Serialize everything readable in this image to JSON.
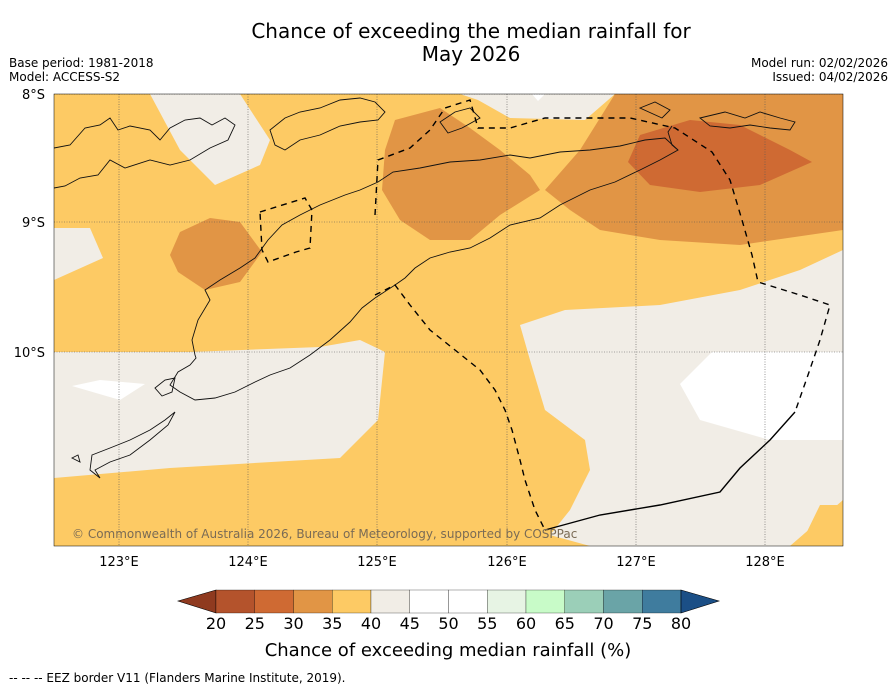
{
  "title_line1": "Chance of exceeding the median rainfall for",
  "title_line2": "May 2026",
  "base_period": "Base period: 1981-2018",
  "model": "Model: ACCESS-S2",
  "model_run": "Model run: 02/02/2026",
  "issued": "Issued: 04/02/2026",
  "lat_labels": [
    "8°S",
    "9°S",
    "10°S"
  ],
  "lon_labels": [
    "123°E",
    "124°E",
    "125°E",
    "126°E",
    "127°E",
    "128°E"
  ],
  "copyright": "© Commonwealth of Australia 2026, Bureau of Meteorology, supported by COSPPac",
  "colorbar": {
    "ticks": [
      "20",
      "25",
      "30",
      "35",
      "40",
      "45",
      "50",
      "55",
      "60",
      "65",
      "70",
      "75",
      "80"
    ],
    "colors": [
      "#8f3a1f",
      "#b4532c",
      "#cf6a33",
      "#e19545",
      "#fdca64",
      "#f1ede6",
      "#ffffff",
      "#ffffff",
      "#e7f4e4",
      "#c8fbc8",
      "#9bcfb8",
      "#6aa4a7",
      "#3f7c9e",
      "#1b4f86"
    ],
    "title": "Chance of exceeding median rainfall (%)"
  },
  "footer": "--  --  -- EEZ border V11 (Flanders Marine Institute, 2019)."
}
